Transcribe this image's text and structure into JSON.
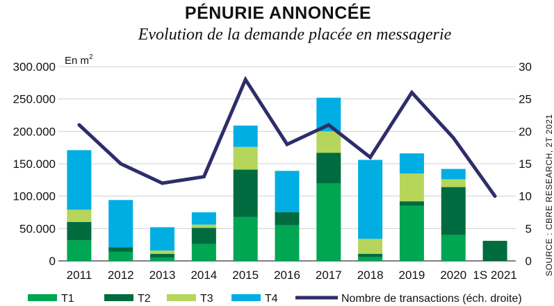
{
  "chart_data": {
    "type": "bar",
    "stacked": true,
    "title": "PÉNURIE ANNONCÉE",
    "subtitle": "Evolution de la demande placée en messagerie",
    "unit_label": "En m",
    "unit_sup": "2",
    "source": "SOURCE : CBRE RESEARCH, 2T 2021",
    "categories": [
      "2011",
      "2012",
      "2013",
      "2014",
      "2015",
      "2016",
      "2017",
      "2018",
      "2019",
      "2020",
      "1S 2021"
    ],
    "left_axis": {
      "min": 0,
      "max": 300000,
      "ticks": [
        "0",
        "50.000",
        "100.000",
        "150.000",
        "200.000",
        "250.000",
        "300.000"
      ]
    },
    "right_axis": {
      "min": 0,
      "max": 30,
      "ticks": [
        "0",
        "5",
        "10",
        "15",
        "20",
        "25",
        "30"
      ]
    },
    "series": [
      {
        "name": "T1",
        "color": "#00a651",
        "values": [
          32000,
          14000,
          5000,
          26000,
          68000,
          55000,
          120000,
          6000,
          85000,
          40000,
          0
        ]
      },
      {
        "name": "T2",
        "color": "#006b3f",
        "values": [
          28000,
          7000,
          6000,
          25000,
          73000,
          20000,
          47000,
          5000,
          7000,
          74000,
          31000
        ]
      },
      {
        "name": "T3",
        "color": "#b5d65a",
        "values": [
          19000,
          0,
          5000,
          5000,
          35000,
          0,
          33000,
          23000,
          43000,
          12000,
          0
        ]
      },
      {
        "name": "T4",
        "color": "#00aee3",
        "values": [
          92000,
          73000,
          36000,
          19000,
          33000,
          64000,
          52000,
          122000,
          31000,
          16000,
          0
        ]
      }
    ],
    "line_series": {
      "name": "Nombre de transactions (éch. droite)",
      "color": "#2e2d6b",
      "values": [
        21,
        15,
        12,
        13,
        28,
        18,
        21,
        16,
        26,
        19,
        10
      ]
    },
    "legend_position": "bottom",
    "grid": true
  }
}
